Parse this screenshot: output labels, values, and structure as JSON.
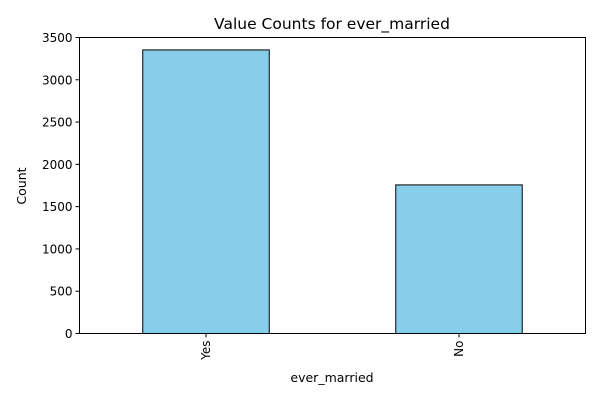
{
  "chart_data": {
    "type": "bar",
    "title": "Value Counts for ever_married",
    "xlabel": "ever_married",
    "ylabel": "Count",
    "categories": [
      "Yes",
      "No"
    ],
    "values": [
      3353,
      1757
    ],
    "ylim": [
      0,
      3500
    ],
    "yticks": [
      0,
      500,
      1000,
      1500,
      2000,
      2500,
      3000,
      3500
    ],
    "bar_color": "#87CEEB",
    "edge_color": "#000000",
    "grid": false,
    "legend": "none",
    "x_tick_rotation": "vertical"
  }
}
